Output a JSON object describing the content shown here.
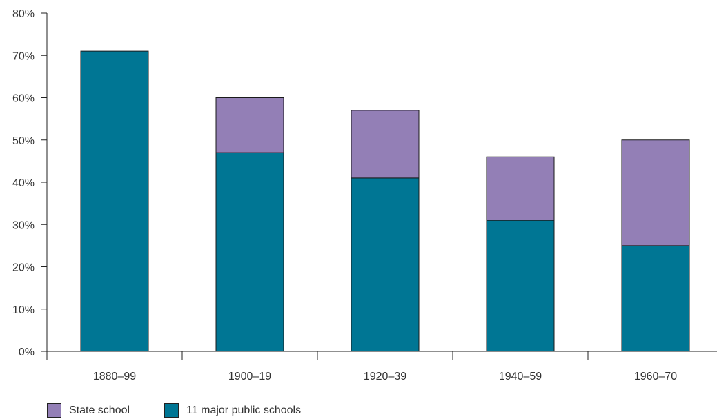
{
  "chart_data": {
    "type": "bar",
    "stacked": true,
    "categories": [
      "1880–99",
      "1900–19",
      "1920–39",
      "1940–59",
      "1960–70"
    ],
    "series": [
      {
        "name": "11 major public schools",
        "values": [
          71,
          47,
          41,
          31,
          25
        ],
        "color": "#007694"
      },
      {
        "name": "State school",
        "values": [
          0,
          13,
          16,
          15,
          25
        ],
        "color": "#937fb6"
      }
    ],
    "ylim": [
      0,
      80
    ],
    "yticks": [
      0,
      10,
      20,
      30,
      40,
      50,
      60,
      70,
      80
    ],
    "ytick_labels": [
      "0%",
      "10%",
      "20%",
      "30%",
      "40%",
      "50%",
      "60%",
      "70%",
      "80%"
    ],
    "title": "",
    "xlabel": "",
    "ylabel": "",
    "grid": false,
    "legend_position": "bottom-left"
  },
  "legend": [
    {
      "label": "State school",
      "color": "#937fb6"
    },
    {
      "label": "11 major public schools",
      "color": "#007694"
    }
  ]
}
